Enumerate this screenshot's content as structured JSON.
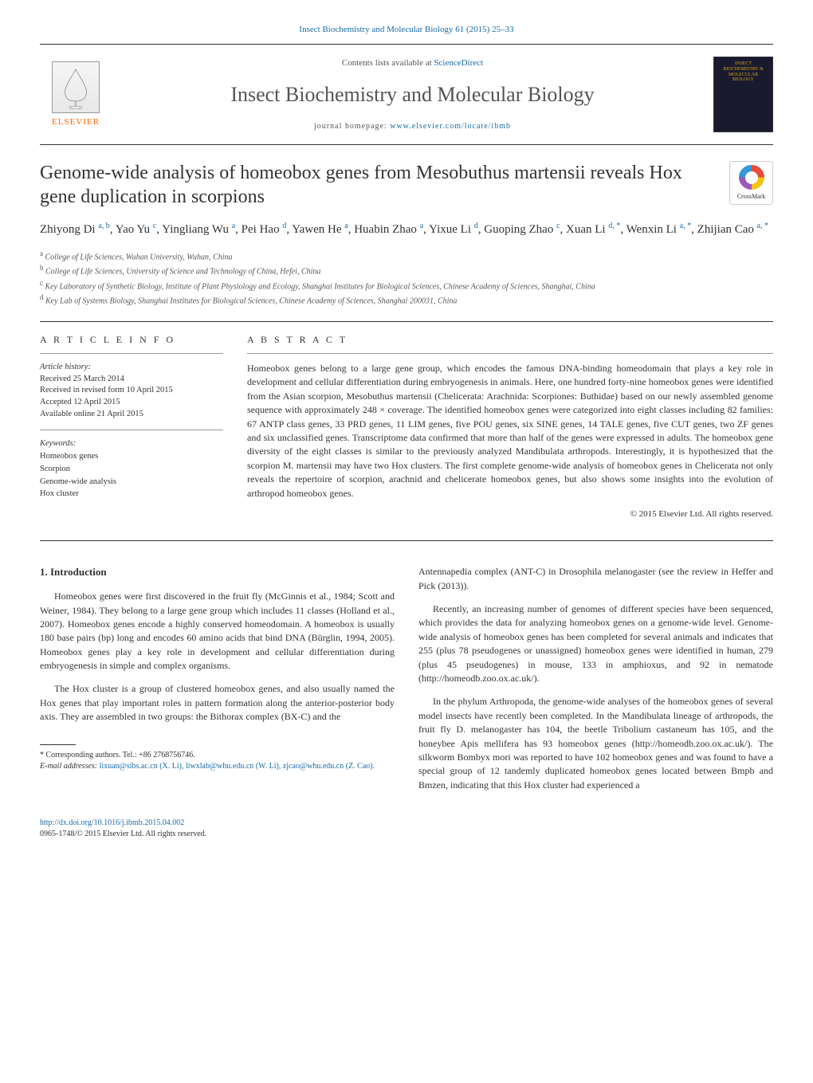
{
  "journal_header_line": "Insect Biochemistry and Molecular Biology 61 (2015) 25–33",
  "contents_available": "Contents lists available at ",
  "sciencedirect": "ScienceDirect",
  "journal_name": "Insect Biochemistry and Molecular Biology",
  "homepage_label": "journal homepage: ",
  "homepage_url": "www.elsevier.com/locate/ibmb",
  "elsevier": "ELSEVIER",
  "cover_text": "INSECT BIOCHEMISTRY & MOLECULAR BIOLOGY",
  "crossmark": "CrossMark",
  "title": "Genome-wide analysis of homeobox genes from Mesobuthus martensii reveals Hox gene duplication in scorpions",
  "authors_html": "Zhiyong Di <sup>a, b</sup>, Yao Yu <sup>c</sup>, Yingliang Wu <sup>a</sup>, Pei Hao <sup>d</sup>, Yawen He <sup>a</sup>, Huabin Zhao <sup>a</sup>, Yixue Li <sup>d</sup>, Guoping Zhao <sup>c</sup>, Xuan Li <sup>d, *</sup>, Wenxin Li <sup>a, *</sup>, Zhijian Cao <sup>a, *</sup>",
  "affiliations": {
    "a": "College of Life Sciences, Wuhan University, Wuhan, China",
    "b": "College of Life Sciences, University of Science and Technology of China, Hefei, China",
    "c": "Key Laboratory of Synthetic Biology, Institute of Plant Physiology and Ecology, Shanghai Institutes for Biological Sciences, Chinese Academy of Sciences, Shanghai, China",
    "d": "Key Lab of Systems Biology, Shanghai Institutes for Biological Sciences, Chinese Academy of Sciences, Shanghai 200031, China"
  },
  "article_info_heading": "A R T I C L E   I N F O",
  "abstract_heading": "A B S T R A C T",
  "history": {
    "label": "Article history:",
    "received": "Received 25 March 2014",
    "revised": "Received in revised form 10 April 2015",
    "accepted": "Accepted 12 April 2015",
    "online": "Available online 21 April 2015"
  },
  "keywords_label": "Keywords:",
  "keywords": [
    "Homeobox genes",
    "Scorpion",
    "Genome-wide analysis",
    "Hox cluster"
  ],
  "abstract": "Homeobox genes belong to a large gene group, which encodes the famous DNA-binding homeodomain that plays a key role in development and cellular differentiation during embryogenesis in animals. Here, one hundred forty-nine homeobox genes were identified from the Asian scorpion, Mesobuthus martensii (Chelicerata: Arachnida: Scorpiones: Buthidae) based on our newly assembled genome sequence with approximately 248 × coverage. The identified homeobox genes were categorized into eight classes including 82 families: 67 ANTP class genes, 33 PRD genes, 11 LIM genes, five POU genes, six SINE genes, 14 TALE genes, five CUT genes, two ZF genes and six unclassified genes. Transcriptome data confirmed that more than half of the genes were expressed in adults. The homeobox gene diversity of the eight classes is similar to the previously analyzed Mandibulata arthropods. Interestingly, it is hypothesized that the scorpion M. martensii may have two Hox clusters. The first complete genome-wide analysis of homeobox genes in Chelicerata not only reveals the repertoire of scorpion, arachnid and chelicerate homeobox genes, but also shows some insights into the evolution of arthropod homeobox genes.",
  "copyright": "© 2015 Elsevier Ltd. All rights reserved.",
  "intro_heading": "1.  Introduction",
  "intro_p1": "Homeobox genes were first discovered in the fruit fly (McGinnis et al., 1984; Scott and Weiner, 1984). They belong to a large gene group which includes 11 classes (Holland et al., 2007). Homeobox genes encode a highly conserved homeodomain. A homeobox is usually 180 base pairs (bp) long and encodes 60 amino acids that bind DNA (Bürglin, 1994, 2005). Homeobox genes play a key role in development and cellular differentiation during embryogenesis in simple and complex organisms.",
  "intro_p2": "The Hox cluster is a group of clustered homeobox genes, and also usually named the Hox genes that play important roles in pattern formation along the anterior-posterior body axis. They are assembled in two groups: the Bithorax complex (BX-C) and the",
  "intro_p3": "Antennapedia complex (ANT-C) in Drosophila melanogaster (see the review in Heffer and Pick (2013)).",
  "intro_p4": "Recently, an increasing number of genomes of different species have been sequenced, which provides the data for analyzing homeobox genes on a genome-wide level. Genome-wide analysis of homeobox genes has been completed for several animals and indicates that 255 (plus 78 pseudogenes or unassigned) homeobox genes were identified in human, 279 (plus 45 pseudogenes) in mouse, 133 in amphioxus, and 92 in nematode (http://homeodb.zoo.ox.ac.uk/).",
  "intro_p5": "In the phylum Arthropoda, the genome-wide analyses of the homeobox genes of several model insects have recently been completed. In the Mandibulata lineage of arthropods, the fruit fly D. melanogaster has 104, the beetle Tribolium castaneum has 105, and the honeybee Apis mellifera has 93 homeobox genes (http://homeodb.zoo.ox.ac.uk/). The silkworm Bombyx mori was reported to have 102 homeobox genes and was found to have a special group of 12 tandemly duplicated homeobox genes located between Bmpb and Bmzen, indicating that this Hox cluster had experienced a",
  "corresponding": "* Corresponding authors. Tel.: +86 2768756746.",
  "emails_label": "E-mail addresses: ",
  "emails_text": "lixuan@sibs.ac.cn (X. Li), liwxlab@whu.edu.cn (W. Li), zjcao@whu.edu.cn (Z. Cao).",
  "doi": "http://dx.doi.org/10.1016/j.ibmb.2015.04.002",
  "issn_copyright": "0965-1748/© 2015 Elsevier Ltd. All rights reserved.",
  "colors": {
    "link": "#1a6ba8",
    "text": "#333333",
    "body_bg": "#ffffff",
    "elsevier_orange": "#ff6600"
  }
}
